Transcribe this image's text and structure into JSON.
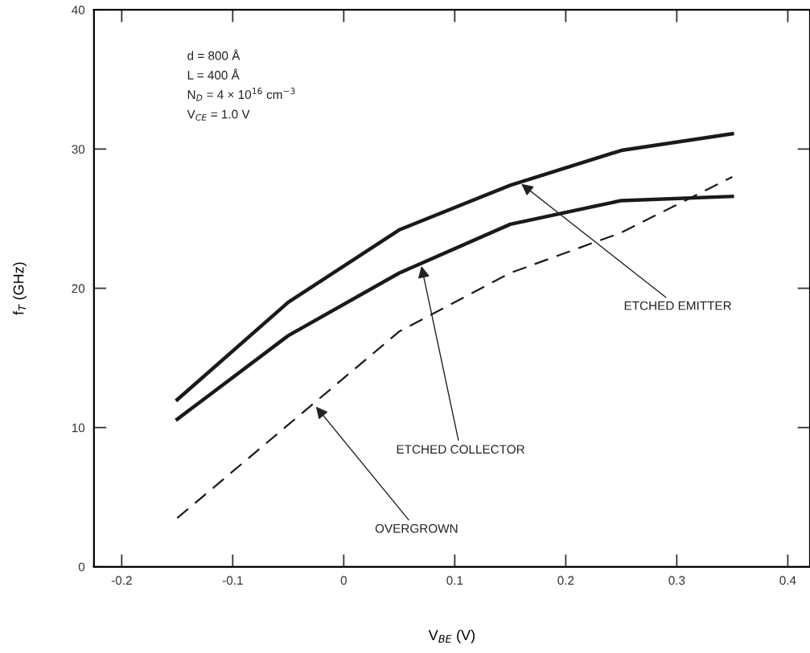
{
  "chart_data": {
    "type": "line",
    "xlabel": "V$_{BE}$ (V)",
    "ylabel": "f$_{T}$ (GHz)",
    "xlim": [
      -0.225,
      0.42
    ],
    "ylim": [
      0,
      40
    ],
    "xticks": [
      -0.2,
      -0.1,
      0,
      0.1,
      0.2,
      0.3,
      0.4
    ],
    "yticks": [
      0,
      10,
      20,
      30,
      40
    ],
    "grid": false,
    "legend": false,
    "marker": "none",
    "x": [
      -0.15,
      -0.05,
      0.05,
      0.15,
      0.25,
      0.35
    ],
    "series": [
      {
        "color": "#1a1a1a",
        "line_style": "solid",
        "values": [
          12.0,
          19.0,
          24.2,
          27.4,
          29.9,
          31.1
        ]
      },
      {
        "color": "#1a1a1a",
        "line_style": "solid",
        "values": [
          10.6,
          16.6,
          21.1,
          24.6,
          26.3,
          26.6
        ]
      },
      {
        "color": "#1a1a1a",
        "line_style": "dashed",
        "values": [
          3.5,
          10.2,
          16.9,
          21.1,
          24.0,
          28.0
        ]
      }
    ],
    "annotations": [
      "d = 800 Å",
      "L = 400 Å",
      "N$_{D}$ = 4 × 10$^{16}$ cm$^{−3}$",
      "V$_{CE}$ = 1.0 V",
      {
        "text": "ETCHED EMITTER",
        "x": 0.16,
        "y": 27.5
      },
      {
        "text": "ETCHED COLLECTOR",
        "x": 0.07,
        "y": 21.6
      },
      {
        "text": "OVERGROWN",
        "x": -0.025,
        "y": 11.5
      }
    ]
  }
}
